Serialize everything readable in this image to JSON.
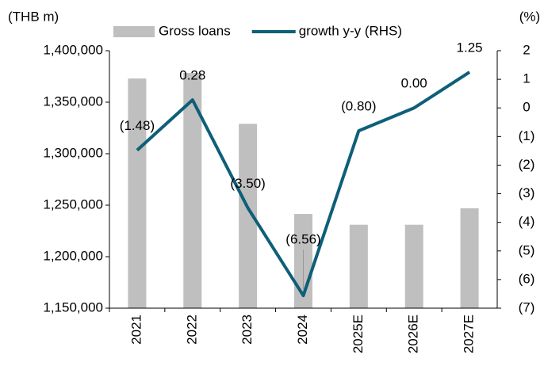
{
  "chart_data": {
    "type": "combo",
    "y_label": "(THB m)",
    "y2_label": "(%)",
    "categories": [
      "2021",
      "2022",
      "2023",
      "2024",
      "2025E",
      "2026E",
      "2027E"
    ],
    "series": [
      {
        "name": "Gross loans",
        "type": "bar",
        "color": "#bfbfbf",
        "values": [
          1373000,
          1378500,
          1329000,
          1241500,
          1231000,
          1231000,
          1247000
        ]
      },
      {
        "name": "growth y-y (RHS)",
        "type": "line",
        "axis": "y2",
        "color": "#0e5f78",
        "values": [
          -1.48,
          0.28,
          -3.5,
          -6.56,
          -0.8,
          0.0,
          1.25
        ],
        "value_labels": [
          "(1.48)",
          "0.28",
          "(3.50)",
          "(6.56)",
          "(0.80)",
          "0.00",
          "1.25"
        ]
      }
    ],
    "ylim": [
      1150000,
      1400000
    ],
    "yticks": [
      {
        "value": 1150000,
        "label": "1,150,000"
      },
      {
        "value": 1200000,
        "label": "1,200,000"
      },
      {
        "value": 1250000,
        "label": "1,250,000"
      },
      {
        "value": 1300000,
        "label": "1,300,000"
      },
      {
        "value": 1350000,
        "label": "1,350,000"
      },
      {
        "value": 1400000,
        "label": "1,400,000"
      }
    ],
    "y2lim": [
      -7,
      2
    ],
    "y2ticks": [
      2,
      1,
      0,
      {
        "value": -1,
        "label": "(1)"
      },
      {
        "value": -2,
        "label": "(2)"
      },
      {
        "value": -3,
        "label": "(3)"
      },
      {
        "value": -4,
        "label": "(4)"
      },
      {
        "value": -5,
        "label": "(5)"
      },
      {
        "value": -6,
        "label": "(6)"
      },
      {
        "value": -7,
        "label": "(7)"
      }
    ],
    "grid": false
  }
}
